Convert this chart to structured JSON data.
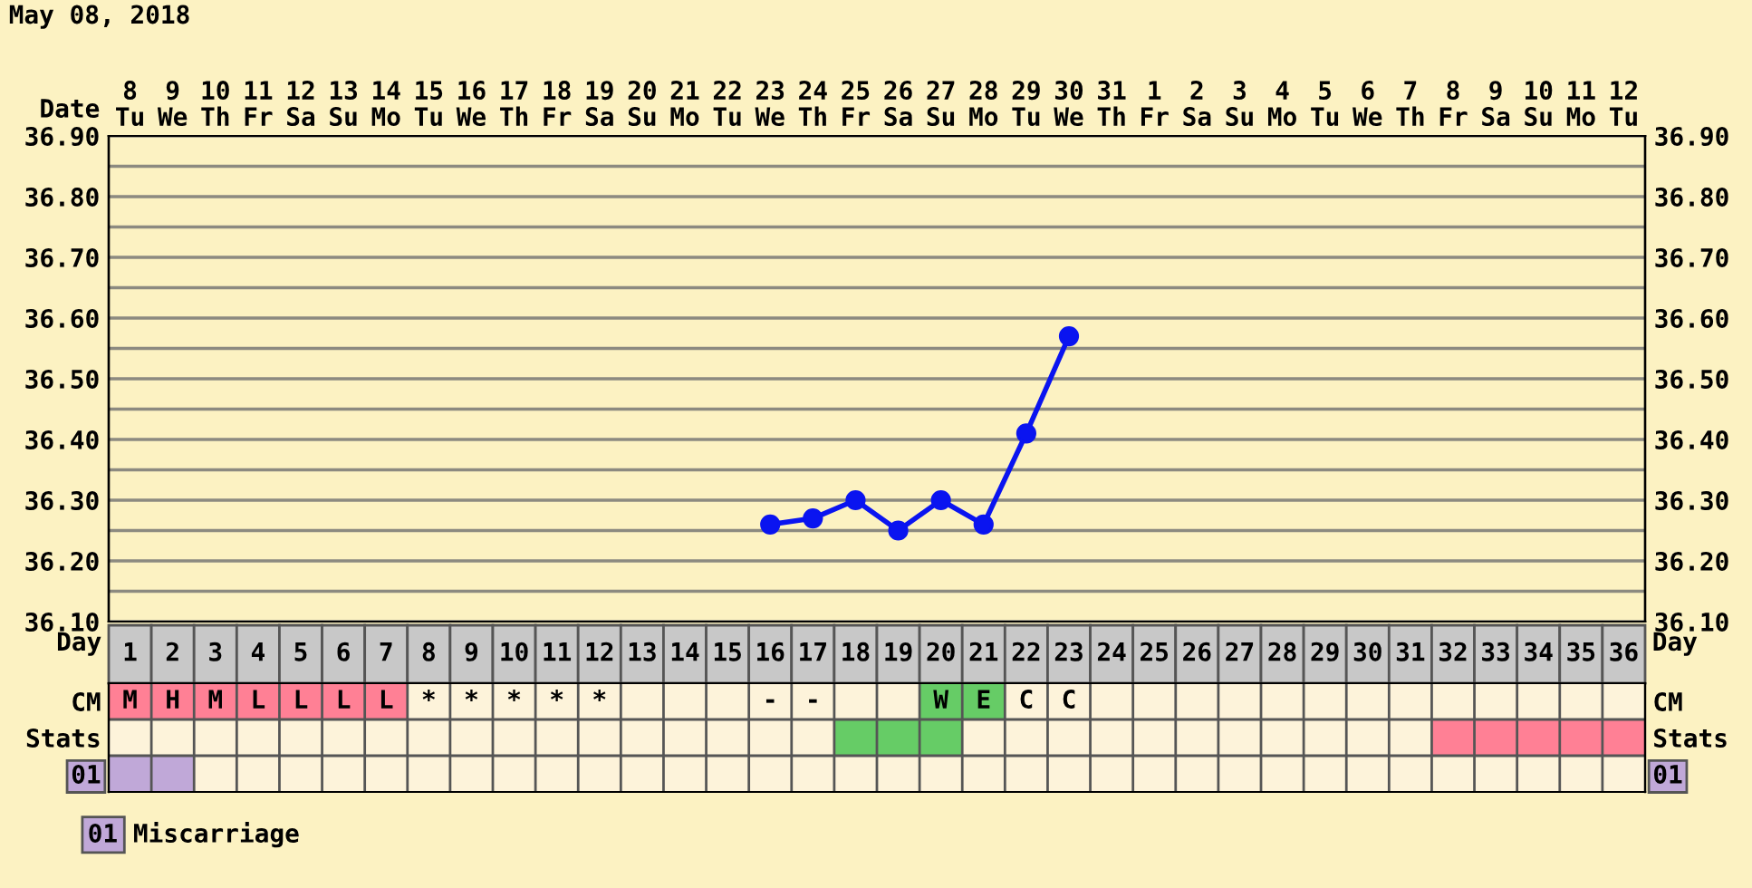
{
  "chart_data": [
    {
      "type": "line",
      "title": "May 08, 2018",
      "xlabel": "Day",
      "x2label": "Date",
      "categories": [
        "1",
        "2",
        "3",
        "4",
        "5",
        "6",
        "7",
        "8",
        "9",
        "10",
        "11",
        "12",
        "13",
        "14",
        "15",
        "16",
        "17",
        "18",
        "19",
        "20",
        "21",
        "22",
        "23",
        "24",
        "25",
        "26",
        "27",
        "28",
        "29",
        "30",
        "31",
        "32",
        "33",
        "34",
        "35",
        "36"
      ],
      "series": [
        {
          "color": "#0a14f0",
          "values": [
            null,
            null,
            null,
            null,
            null,
            null,
            null,
            null,
            null,
            null,
            null,
            null,
            null,
            null,
            null,
            36.26,
            36.27,
            36.3,
            36.25,
            36.3,
            36.26,
            36.41,
            36.57,
            null,
            null,
            null,
            null,
            null,
            null,
            null,
            null,
            null,
            null,
            null,
            null,
            null
          ]
        }
      ],
      "marker": "circle",
      "line_style": "solid",
      "grid": true,
      "ylim": [
        36.1,
        36.9
      ],
      "yticks": [
        {
          "value": 36.1,
          "label": "36.10"
        },
        {
          "value": 36.15,
          "label": null
        },
        {
          "value": 36.2,
          "label": "36.20"
        },
        {
          "value": 36.25,
          "label": null
        },
        {
          "value": 36.3,
          "label": "36.30"
        },
        {
          "value": 36.35,
          "label": null
        },
        {
          "value": 36.4,
          "label": "36.40"
        },
        {
          "value": 36.45,
          "label": null
        },
        {
          "value": 36.5,
          "label": "36.50"
        },
        {
          "value": 36.55,
          "label": null
        },
        {
          "value": 36.6,
          "label": "36.60"
        },
        {
          "value": 36.65,
          "label": null
        },
        {
          "value": 36.7,
          "label": "36.70"
        },
        {
          "value": 36.75,
          "label": null
        },
        {
          "value": 36.8,
          "label": "36.80"
        },
        {
          "value": 36.85,
          "label": null
        },
        {
          "value": 36.9,
          "label": "36.90"
        }
      ],
      "y2lim": [
        36.1,
        36.9
      ],
      "y2ticks": [
        {
          "value": 36.1,
          "label": "36.10"
        },
        {
          "value": 36.2,
          "label": "36.20"
        },
        {
          "value": 36.3,
          "label": "36.30"
        },
        {
          "value": 36.4,
          "label": "36.40"
        },
        {
          "value": 36.5,
          "label": "36.50"
        },
        {
          "value": 36.6,
          "label": "36.60"
        },
        {
          "value": 36.7,
          "label": "36.70"
        },
        {
          "value": 36.8,
          "label": "36.80"
        },
        {
          "value": 36.9,
          "label": "36.90"
        }
      ],
      "x2lim": [
        "2018-05-07T12:00",
        "2018-06-12T12:00"
      ],
      "x2ticks": [
        {
          "value": "2018-05-08",
          "label": "8\nTu"
        },
        {
          "value": "2018-05-09",
          "label": "9\nWe"
        },
        {
          "value": "2018-05-10",
          "label": "10\nTh"
        },
        {
          "value": "2018-05-11",
          "label": "11\nFr"
        },
        {
          "value": "2018-05-12",
          "label": "12\nSa"
        },
        {
          "value": "2018-05-13",
          "label": "13\nSu"
        },
        {
          "value": "2018-05-14",
          "label": "14\nMo"
        },
        {
          "value": "2018-05-15",
          "label": "15\nTu"
        },
        {
          "value": "2018-05-16",
          "label": "16\nWe"
        },
        {
          "value": "2018-05-17",
          "label": "17\nTh"
        },
        {
          "value": "2018-05-18",
          "label": "18\nFr"
        },
        {
          "value": "2018-05-19",
          "label": "19\nSa"
        },
        {
          "value": "2018-05-20",
          "label": "20\nSu"
        },
        {
          "value": "2018-05-21",
          "label": "21\nMo"
        },
        {
          "value": "2018-05-22",
          "label": "22\nTu"
        },
        {
          "value": "2018-05-23",
          "label": "23\nWe"
        },
        {
          "value": "2018-05-24",
          "label": "24\nTh"
        },
        {
          "value": "2018-05-25",
          "label": "25\nFr"
        },
        {
          "value": "2018-05-26",
          "label": "26\nSa"
        },
        {
          "value": "2018-05-27",
          "label": "27\nSu"
        },
        {
          "value": "2018-05-28",
          "label": "28\nMo"
        },
        {
          "value": "2018-05-29",
          "label": "29\nTu"
        },
        {
          "value": "2018-05-30",
          "label": "30\nWe"
        },
        {
          "value": "2018-05-31",
          "label": "31\nTh"
        },
        {
          "value": "2018-06-01",
          "label": "1\nFr"
        },
        {
          "value": "2018-06-02",
          "label": "2\nSa"
        },
        {
          "value": "2018-06-03",
          "label": "3\nSu"
        },
        {
          "value": "2018-06-04",
          "label": "4\nMo"
        },
        {
          "value": "2018-06-05",
          "label": "5\nTu"
        },
        {
          "value": "2018-06-06",
          "label": "6\nWe"
        },
        {
          "value": "2018-06-07",
          "label": "7\nTh"
        },
        {
          "value": "2018-06-08",
          "label": "8\nFr"
        },
        {
          "value": "2018-06-09",
          "label": "9\nSa"
        },
        {
          "value": "2018-06-10",
          "label": "10\nSu"
        },
        {
          "value": "2018-06-11",
          "label": "11\nMo"
        },
        {
          "value": "2018-06-12",
          "label": "12\nTu"
        }
      ]
    },
    {
      "type": "heatmap",
      "categories": [
        "1",
        "2",
        "3",
        "4",
        "5",
        "6",
        "7",
        "8",
        "9",
        "10",
        "11",
        "12",
        "13",
        "14",
        "15",
        "16",
        "17",
        "18",
        "19",
        "20",
        "21",
        "22",
        "23",
        "24",
        "25",
        "26",
        "27",
        "28",
        "29",
        "30",
        "31",
        "32",
        "33",
        "34",
        "35",
        "36"
      ],
      "y_categories": [
        "CM",
        "Stats",
        "01"
      ],
      "y2_categories": [
        "CM",
        "Stats",
        "01"
      ],
      "tick_labels": "y",
      "grid": true,
      "cells": [
        [
          null,
          null,
          null,
          null,
          null,
          null,
          null,
          null,
          null,
          null,
          null,
          null,
          null,
          null,
          null,
          null,
          null,
          null,
          null,
          null,
          null,
          null,
          null,
          null,
          null,
          null,
          null,
          null,
          null,
          null,
          null,
          null,
          null,
          null,
          null,
          null
        ],
        [
          null,
          null,
          null,
          null,
          null,
          null,
          null,
          null,
          null,
          null,
          null,
          null,
          null,
          null,
          null,
          null,
          null,
          null,
          null,
          null,
          null,
          null,
          null,
          null,
          null,
          null,
          null,
          null,
          null,
          null,
          null,
          null,
          null,
          null,
          null,
          null
        ],
        [
          null,
          null,
          null,
          null,
          null,
          null,
          null,
          null,
          null,
          null,
          null,
          null,
          null,
          null,
          null,
          null,
          null,
          null,
          null,
          null,
          null,
          null,
          null,
          null,
          null,
          null,
          null,
          null,
          null,
          null,
          null,
          null,
          null,
          null,
          null,
          null
        ]
      ],
      "cell_labels": [
        [
          "M",
          "H",
          "M",
          "L",
          "L",
          "L",
          "L",
          "*",
          "*",
          "*",
          "*",
          "*",
          null,
          null,
          null,
          "-",
          "-",
          null,
          null,
          "W",
          "E",
          "C",
          "C",
          null,
          null,
          null,
          null,
          null,
          null,
          null,
          null,
          null,
          null,
          null,
          null,
          null
        ],
        [
          null,
          null,
          null,
          null,
          null,
          null,
          null,
          null,
          null,
          null,
          null,
          null,
          null,
          null,
          null,
          null,
          null,
          null,
          null,
          null,
          null,
          null,
          null,
          null,
          null,
          null,
          null,
          null,
          null,
          null,
          null,
          null,
          null,
          null,
          null,
          null
        ],
        [
          null,
          null,
          null,
          null,
          null,
          null,
          null,
          null,
          null,
          null,
          null,
          null,
          null,
          null,
          null,
          null,
          null,
          null,
          null,
          null,
          null,
          null,
          null,
          null,
          null,
          null,
          null,
          null,
          null,
          null,
          null,
          null,
          null,
          null,
          null,
          null
        ]
      ],
      "annotations": [
        "01 Miscarriage"
      ]
    }
  ]
}
